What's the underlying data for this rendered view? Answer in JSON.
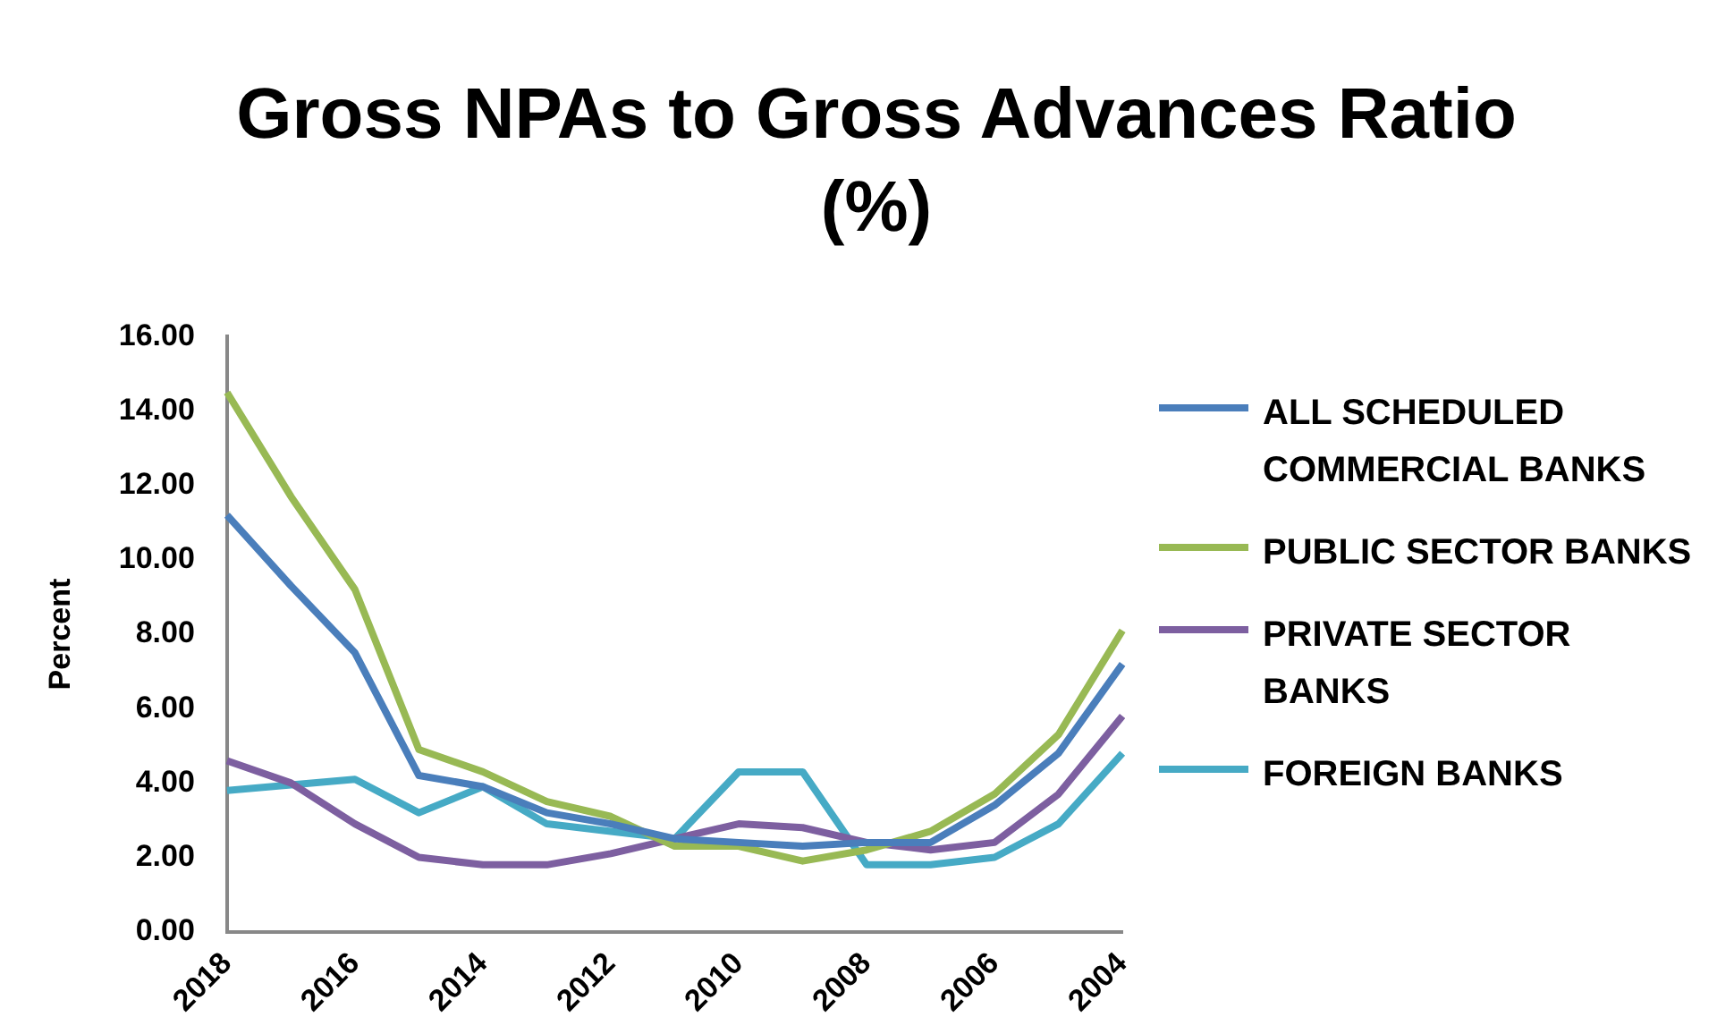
{
  "chart_data": {
    "type": "line",
    "title": "Gross NPAs to Gross Advances Ratio (%)",
    "ylabel": "Percent",
    "categories": [
      "2018",
      null,
      "2016",
      null,
      "2014",
      null,
      "2012",
      null,
      "2010",
      null,
      "2008",
      null,
      "2006",
      null,
      "2004"
    ],
    "series": [
      {
        "name": "ALL SCHEDULED COMMERCIAL BANKS",
        "color": "#4a7ebb",
        "values": [
          11.2,
          9.3,
          7.5,
          4.2,
          3.9,
          3.2,
          2.9,
          2.5,
          2.4,
          2.3,
          2.4,
          2.4,
          3.4,
          4.8,
          7.2
        ]
      },
      {
        "name": "PUBLIC SECTOR BANKS",
        "color": "#98b954",
        "values": [
          14.5,
          11.7,
          9.2,
          4.9,
          4.3,
          3.5,
          3.1,
          2.3,
          2.3,
          1.9,
          2.2,
          2.7,
          3.7,
          5.3,
          8.1
        ]
      },
      {
        "name": "PRIVATE SECTOR BANKS",
        "color": "#7d5fa0",
        "values": [
          4.6,
          4.0,
          2.9,
          2.0,
          1.8,
          1.8,
          2.1,
          2.5,
          2.9,
          2.8,
          2.4,
          2.2,
          2.4,
          3.7,
          5.8
        ]
      },
      {
        "name": "FOREIGN BANKS",
        "color": "#46aac5",
        "values": [
          3.8,
          3.95,
          4.1,
          3.2,
          3.9,
          2.9,
          2.7,
          2.5,
          4.3,
          4.3,
          1.8,
          1.8,
          2.0,
          2.9,
          4.8
        ]
      }
    ],
    "ylim": [
      0,
      16
    ],
    "yticks": [
      {
        "value": 0,
        "label": "0.00"
      },
      {
        "value": 2,
        "label": "2.00"
      },
      {
        "value": 4,
        "label": "4.00"
      },
      {
        "value": 6,
        "label": "6.00"
      },
      {
        "value": 8,
        "label": "8.00"
      },
      {
        "value": 10,
        "label": "10.00"
      },
      {
        "value": 12,
        "label": "12.00"
      },
      {
        "value": 14,
        "label": "14.00"
      },
      {
        "value": 16,
        "label": "16.00"
      }
    ],
    "grid": false,
    "legend": "right",
    "marker": "none",
    "line_style": "solid"
  }
}
